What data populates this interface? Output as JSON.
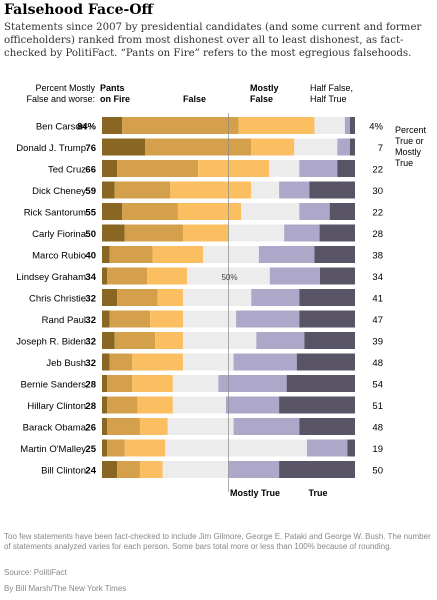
{
  "title": "Falsehood Face-Off",
  "subtitle": "Statements since 2007 by presidential candidates (and some current and former officeholders) ranked from most dishonest over all to least dishonest, as fact-checked by PolitiFact. “Pants on Fire” refers to the most egregious falsehoods.",
  "headers": {
    "left_line1": "Percent Mostly",
    "left_line2": "False and worse:",
    "pants_line1": "Pants",
    "pants_line2": "on Fire",
    "false": "False",
    "mostly_false_line1": "Mostly",
    "mostly_false_line2": "False",
    "half_line1": "Half False,",
    "half_line2": "Half True",
    "right_line1": "Percent",
    "right_line2": "True or",
    "right_line3": "Mostly",
    "right_line4": "True"
  },
  "bottom_labels": {
    "mostly_true": "Mostly True",
    "true": "True"
  },
  "footnotes": {
    "note": "Too few statements have been fact-checked to include Jim Gilmore, George E. Pataki and George W. Bush. The number of statements analyzed varies for each person. Some bars total more or less than 100% because of rounding.",
    "source": "Source: PolitiFact",
    "credit": "By Bill Marsh/The New York Times"
  },
  "colors": {
    "pants_on_fire": "#8a6623",
    "false": "#d5a04c",
    "mostly_false": "#fbbf62",
    "half_true": "#ececec",
    "mostly_true": "#ada7c9",
    "true": "#585466"
  },
  "chart_data": {
    "type": "bar",
    "stacked": true,
    "orientation": "horizontal",
    "center_reference": {
      "value": 50,
      "label": "50%"
    },
    "x_range": [
      0,
      100
    ],
    "first_row_percent_suffix": "%",
    "categories": [
      "Ben Carson",
      "Donald J. Trump",
      "Ted Cruz",
      "Dick Cheney",
      "Rick Santorum",
      "Carly Fiorina",
      "Marco Rubio",
      "Lindsey Graham",
      "Chris Christie",
      "Rand Paul",
      "Joseph R. Biden",
      "Jeb Bush",
      "Bernie Sanders",
      "Hillary Clinton",
      "Barack Obama",
      "Martin O'Malley",
      "Bill Clinton"
    ],
    "mostly_false_and_worse": [
      84,
      76,
      66,
      59,
      55,
      50,
      40,
      34,
      32,
      32,
      32,
      32,
      28,
      28,
      26,
      25,
      24
    ],
    "true_or_mostly_true": [
      4,
      7,
      22,
      30,
      22,
      28,
      38,
      34,
      41,
      47,
      39,
      48,
      54,
      51,
      48,
      19,
      50
    ],
    "series": [
      {
        "name": "Pants on Fire",
        "values": [
          8,
          17,
          6,
          5,
          8,
          9,
          3,
          2,
          6,
          3,
          5,
          3,
          2,
          2,
          2,
          2,
          6
        ]
      },
      {
        "name": "False",
        "values": [
          46,
          42,
          32,
          22,
          22,
          23,
          17,
          16,
          16,
          16,
          16,
          9,
          10,
          12,
          13,
          7,
          9
        ]
      },
      {
        "name": "Mostly False",
        "values": [
          30,
          17,
          28,
          32,
          25,
          18,
          20,
          16,
          10,
          13,
          11,
          20,
          16,
          14,
          11,
          16,
          9
        ]
      },
      {
        "name": "Half False, Half True",
        "values": [
          12,
          17,
          12,
          11,
          23,
          22,
          22,
          33,
          27,
          21,
          29,
          20,
          18,
          21,
          26,
          56,
          26
        ]
      },
      {
        "name": "Mostly True",
        "values": [
          2,
          5,
          15,
          12,
          12,
          14,
          22,
          20,
          19,
          25,
          19,
          25,
          27,
          21,
          26,
          16,
          20
        ]
      },
      {
        "name": "True",
        "values": [
          2,
          2,
          7,
          18,
          10,
          14,
          16,
          14,
          22,
          22,
          20,
          23,
          27,
          30,
          22,
          3,
          30
        ]
      }
    ]
  }
}
